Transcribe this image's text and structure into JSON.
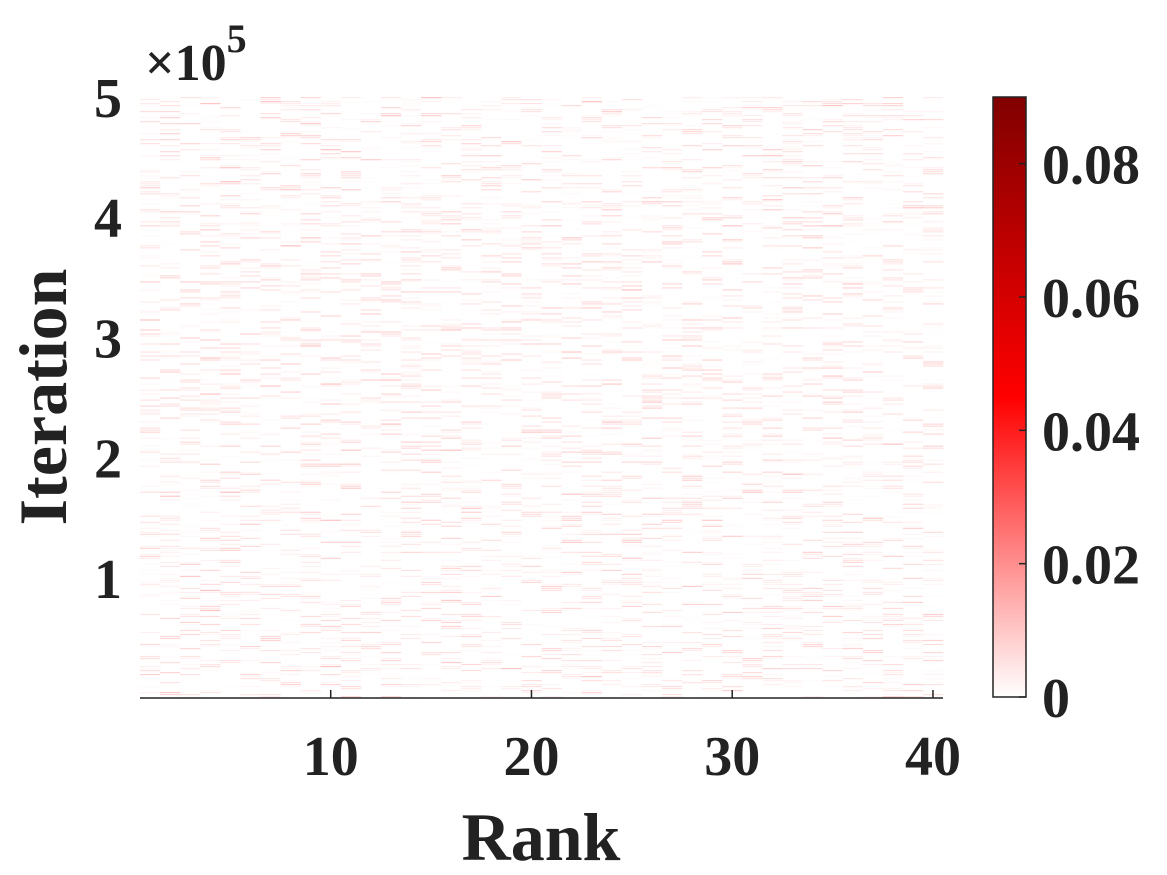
{
  "chart_data": {
    "type": "heatmap",
    "title": "",
    "xlabel": "Rank",
    "ylabel": "Iteration",
    "y_exponent_label": "×10",
    "y_exponent_power": "5",
    "x_range": [
      1,
      40
    ],
    "y_range": [
      0,
      500000
    ],
    "x_ticks": [
      10,
      20,
      30,
      40
    ],
    "x_tick_labels": [
      "10",
      "20",
      "30",
      "40"
    ],
    "y_ticks": [
      100000,
      200000,
      300000,
      400000,
      500000
    ],
    "y_tick_labels": [
      "1",
      "2",
      "3",
      "4",
      "5"
    ],
    "colorbar": {
      "range": [
        0,
        0.09
      ],
      "ticks": [
        0,
        0.02,
        0.04,
        0.06,
        0.08
      ],
      "tick_labels": [
        "0",
        "0.02",
        "0.04",
        "0.06",
        "0.08"
      ],
      "colors": [
        "#ffffff",
        "#ff8080",
        "#ff0000",
        "#c00000",
        "#800000"
      ]
    },
    "value_description_range": [
      0,
      0.02
    ],
    "grid": false,
    "legend": "none"
  }
}
